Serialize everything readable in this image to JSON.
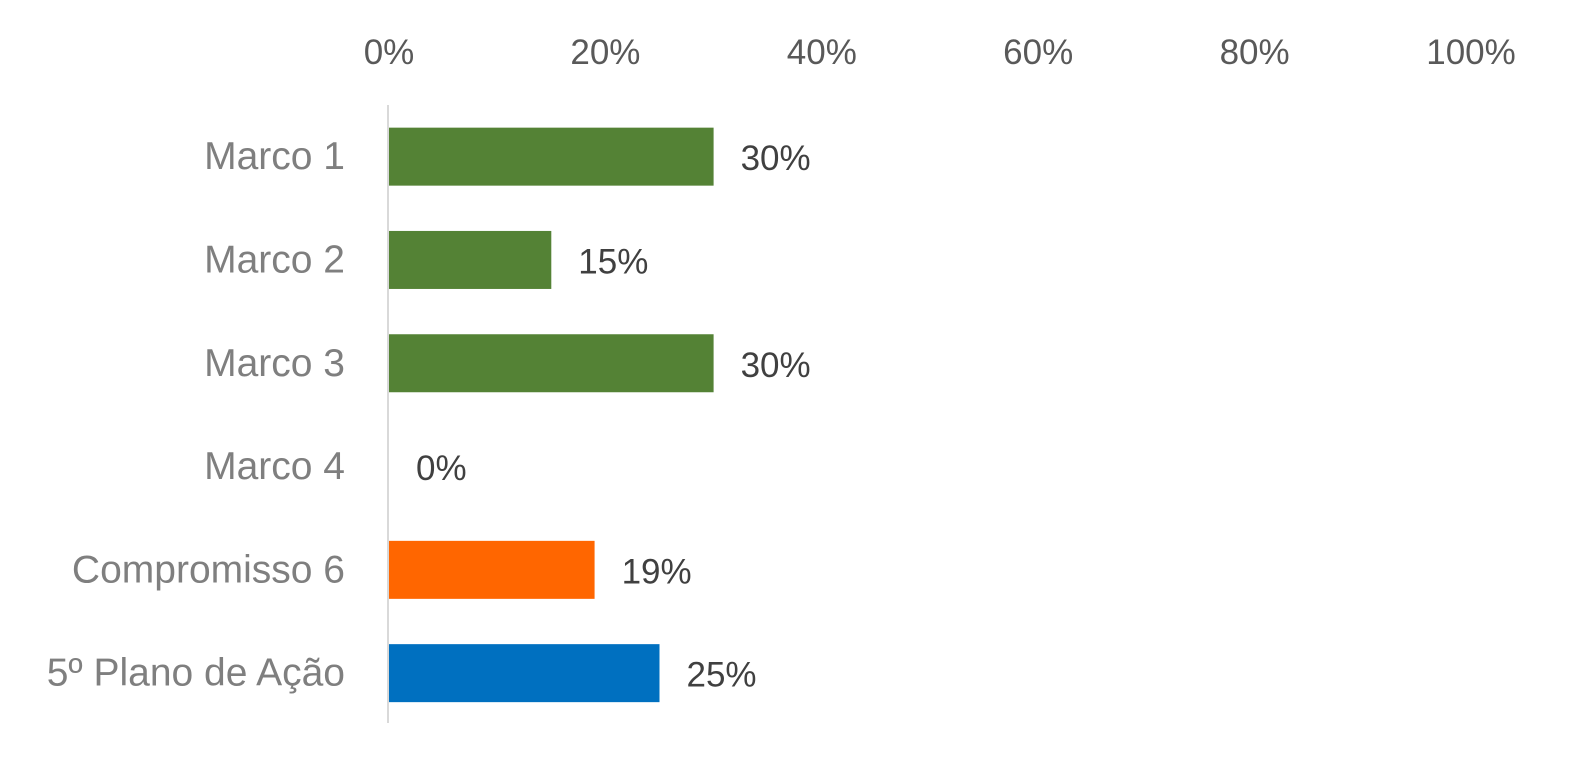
{
  "chart_data": {
    "type": "bar",
    "orientation": "horizontal",
    "categories": [
      "Marco 1",
      "Marco 2",
      "Marco 3",
      "Marco 4",
      "Compromisso 6",
      "5º Plano de Ação"
    ],
    "values": [
      30,
      15,
      30,
      0,
      19,
      25
    ],
    "data_labels": [
      "30%",
      "15%",
      "30%",
      "0%",
      "19%",
      "25%"
    ],
    "bar_colors": [
      "#548235",
      "#548235",
      "#548235",
      "#548235",
      "#ff6600",
      "#0070c0"
    ],
    "xlim": [
      0,
      100
    ],
    "x_ticks": [
      0,
      20,
      40,
      60,
      80,
      100
    ],
    "x_tick_labels": [
      "0%",
      "20%",
      "40%",
      "60%",
      "80%",
      "100%"
    ],
    "x_axis_position": "top",
    "grid": false,
    "legend": "none",
    "title": "",
    "xlabel": "",
    "ylabel": ""
  }
}
